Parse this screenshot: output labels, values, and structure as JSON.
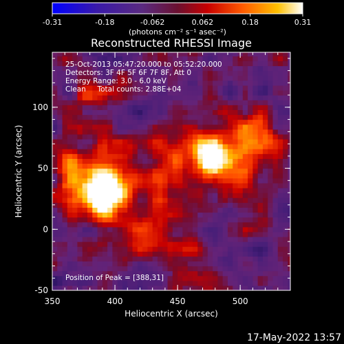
{
  "chart_data": {
    "type": "heatmap",
    "title": "Reconstructed RHESSI Image",
    "colorbar": {
      "ticks": [
        "-0.31",
        "-0.18",
        "-0.062",
        "0.062",
        "0.18",
        "0.31"
      ],
      "min": -0.31,
      "max": 0.31,
      "units_label": "(photons cm⁻² s⁻¹ asec⁻²)"
    },
    "info_lines": [
      "25-Oct-2013 05:47:20.000 to 05:52:20.000",
      "Detectors: 3F 4F 5F 6F 7F 8F, Att 0",
      "Energy Range: 3.0 - 6.0 keV",
      "Clean     Total counts: 2.88E+04"
    ],
    "peak_label": "Position of Peak = [388,31]",
    "xlabel": "Heliocentric X (arcsec)",
    "ylabel": "Heliocentric Y (arcsec)",
    "xlim": [
      350,
      540
    ],
    "ylim": [
      -50,
      145
    ],
    "x_ticks": [
      350,
      400,
      450,
      500
    ],
    "y_ticks": [
      -50,
      0,
      50,
      100
    ],
    "x_tick_labels": [
      "350",
      "400",
      "450",
      "500"
    ],
    "y_tick_labels": [
      "-50",
      "0",
      "50",
      "100"
    ],
    "sources": [
      {
        "x": 388,
        "y": 31,
        "intensity": 0.31
      },
      {
        "x": 476,
        "y": 60,
        "intensity": 0.25
      }
    ],
    "colors": {
      "low": "#1a1aff",
      "mid": "#5a2a8a",
      "high_orange": "#ff7a00",
      "peak": "#ffffff",
      "background": "#000000"
    }
  },
  "footer": {
    "timestamp": "17-May-2022 13:57"
  }
}
